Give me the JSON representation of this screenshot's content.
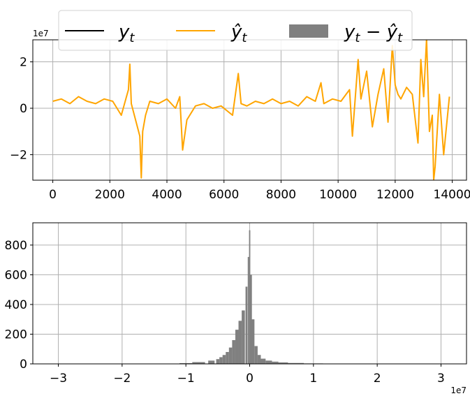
{
  "chart_data": [
    {
      "type": "line",
      "title": "",
      "xlabel": "",
      "ylabel": "",
      "xlim": [
        -700,
        14500
      ],
      "ylim": [
        -3.1,
        2.95
      ],
      "y_offset_label": "1e7",
      "xticks": [
        "0",
        "2000",
        "4000",
        "6000",
        "8000",
        "10000",
        "12000",
        "14000"
      ],
      "yticks": [
        "2",
        "0",
        "−2"
      ],
      "grid": true,
      "legend": {
        "placement": "top-center",
        "entries": [
          {
            "label_base": "y",
            "label_sub": "t",
            "style": "line",
            "color": "#000000"
          },
          {
            "label_base": "ŷ",
            "label_sub": "t",
            "style": "line",
            "color": "#ffa500"
          },
          {
            "label_base": "y",
            "label_sub": "t",
            "label_mid": " − ",
            "label_base2": "ŷ",
            "label_sub2": "t",
            "style": "patch",
            "color": "#808080"
          }
        ]
      },
      "series": [
        {
          "color": "#ffa500",
          "x": [
            0,
            300,
            600,
            900,
            1200,
            1500,
            1800,
            2100,
            2400,
            2650,
            2700,
            2750,
            2900,
            3050,
            3100,
            3150,
            3250,
            3400,
            3700,
            4000,
            4300,
            4450,
            4550,
            4700,
            5000,
            5300,
            5600,
            5900,
            6300,
            6500,
            6600,
            6800,
            7100,
            7400,
            7700,
            8000,
            8300,
            8600,
            8900,
            9200,
            9400,
            9500,
            9800,
            10100,
            10400,
            10500,
            10700,
            10800,
            11000,
            11200,
            11400,
            11600,
            11750,
            11900,
            12000,
            12100,
            12200,
            12400,
            12600,
            12800,
            12900,
            13000,
            13100,
            13200,
            13300,
            13350,
            13400,
            13550,
            13700,
            13900
          ],
          "values": [
            0.3,
            0.4,
            0.2,
            0.5,
            0.3,
            0.2,
            0.4,
            0.3,
            -0.3,
            0.8,
            1.9,
            0.2,
            -0.5,
            -1.2,
            -3.0,
            -1.0,
            -0.3,
            0.3,
            0.2,
            0.4,
            0.0,
            0.5,
            -1.8,
            -0.5,
            0.1,
            0.2,
            0.0,
            0.1,
            -0.3,
            1.5,
            0.2,
            0.1,
            0.3,
            0.2,
            0.4,
            0.2,
            0.3,
            0.1,
            0.5,
            0.3,
            1.1,
            0.2,
            0.4,
            0.3,
            0.8,
            -1.2,
            2.1,
            0.4,
            1.6,
            -0.8,
            0.6,
            1.7,
            -0.6,
            2.7,
            1.0,
            0.6,
            0.4,
            0.9,
            0.6,
            -1.5,
            2.1,
            0.5,
            3.0,
            -1.0,
            -0.3,
            -3.1,
            -2.5,
            0.6,
            -2.0,
            0.5
          ]
        }
      ]
    },
    {
      "type": "bar",
      "title": "",
      "xlabel": "",
      "ylabel": "",
      "xlim": [
        -3.4,
        3.4
      ],
      "ylim": [
        0,
        950
      ],
      "x_offset_label": "1e7",
      "xticks": [
        "−3",
        "−2",
        "−1",
        "0",
        "1",
        "2",
        "3"
      ],
      "yticks": [
        "0",
        "200",
        "400",
        "600",
        "800"
      ],
      "grid": true,
      "bar_color": "#808080",
      "x": [
        -1.0,
        -0.8,
        -0.6,
        -0.5,
        -0.45,
        -0.4,
        -0.35,
        -0.3,
        -0.25,
        -0.2,
        -0.15,
        -0.1,
        -0.05,
        -0.02,
        0.0,
        0.02,
        0.05,
        0.1,
        0.15,
        0.2,
        0.3,
        0.4,
        0.5,
        0.7,
        1.0
      ],
      "values": [
        5,
        12,
        22,
        32,
        45,
        60,
        80,
        110,
        160,
        230,
        290,
        360,
        520,
        720,
        900,
        600,
        300,
        120,
        60,
        35,
        22,
        15,
        10,
        6,
        3
      ]
    }
  ]
}
